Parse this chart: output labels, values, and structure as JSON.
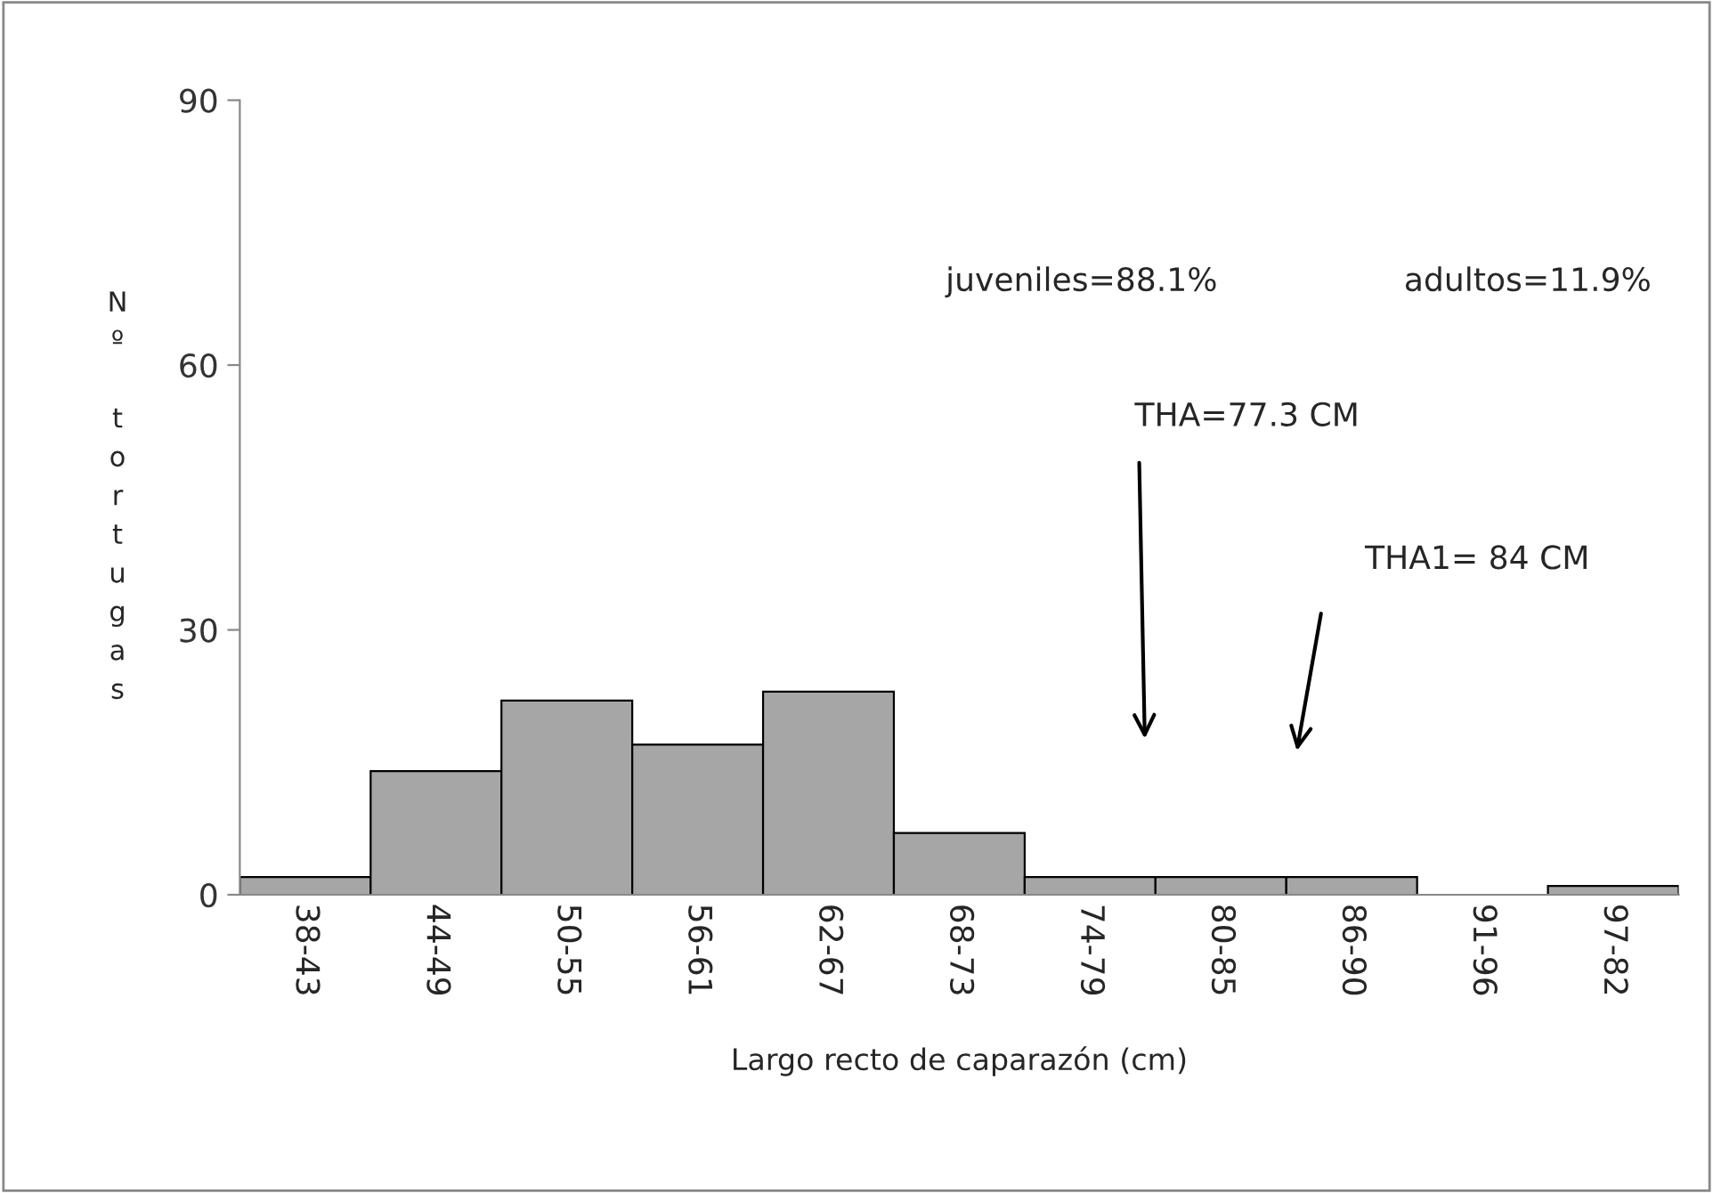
{
  "chart_data": {
    "type": "bar",
    "xlabel": "Largo recto de caparazón (cm)",
    "ylabel": "Nº tortugas",
    "categories": [
      "38-43",
      "44-49",
      "50-55",
      "56-61",
      "62-67",
      "68-73",
      "74-79",
      "80-85",
      "86-90",
      "91-96",
      "97-82"
    ],
    "values": [
      2,
      14,
      22,
      17,
      23,
      7,
      2,
      2,
      2,
      0,
      1
    ],
    "color": "#a6a6a6",
    "ylim": [
      0,
      90
    ],
    "yticks": [
      0,
      30,
      60,
      90
    ],
    "grid": false,
    "legend": false,
    "annotations": [
      "juveniles=88.1%",
      "adultos=11.9%",
      "THA=77.3 CM",
      "THA1= 84 CM"
    ]
  }
}
